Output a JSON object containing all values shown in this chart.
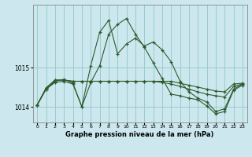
{
  "title": "Graphe pression niveau de la mer (hPa)",
  "background_color": "#cce8ee",
  "grid_color": "#99cccc",
  "line_color": "#2d5a2d",
  "marker_color": "#2d5a2d",
  "xlim": [
    -0.5,
    23.5
  ],
  "ylim": [
    1013.6,
    1016.6
  ],
  "yticks": [
    1014,
    1015
  ],
  "xticks": [
    0,
    1,
    2,
    3,
    4,
    5,
    6,
    7,
    8,
    9,
    10,
    11,
    12,
    13,
    14,
    15,
    16,
    17,
    18,
    19,
    20,
    21,
    22,
    23
  ],
  "series": [
    [
      1014.05,
      1014.45,
      1014.65,
      1014.7,
      1014.6,
      1014.0,
      1015.05,
      1015.9,
      1016.2,
      1015.35,
      1015.6,
      1015.75,
      1015.55,
      1015.65,
      1015.45,
      1015.15,
      1014.65,
      1014.38,
      1014.22,
      1014.12,
      1013.88,
      1013.95,
      1014.45,
      1014.58
    ],
    [
      1014.05,
      1014.48,
      1014.68,
      1014.68,
      1014.65,
      1014.65,
      1014.65,
      1014.65,
      1014.65,
      1014.65,
      1014.65,
      1014.65,
      1014.65,
      1014.65,
      1014.65,
      1014.65,
      1014.6,
      1014.55,
      1014.5,
      1014.45,
      1014.4,
      1014.38,
      1014.58,
      1014.6
    ],
    [
      1014.05,
      1014.48,
      1014.68,
      1014.68,
      1014.65,
      1014.65,
      1014.65,
      1014.65,
      1014.65,
      1014.65,
      1014.65,
      1014.65,
      1014.65,
      1014.65,
      1014.62,
      1014.58,
      1014.52,
      1014.45,
      1014.38,
      1014.32,
      1014.28,
      1014.25,
      1014.52,
      1014.58
    ],
    [
      1014.05,
      1014.45,
      1014.62,
      1014.65,
      1014.58,
      1014.0,
      1014.62,
      1015.05,
      1015.85,
      1016.1,
      1016.25,
      1015.85,
      1015.52,
      1015.12,
      1014.72,
      1014.32,
      1014.28,
      1014.22,
      1014.18,
      1014.02,
      1013.82,
      1013.88,
      1014.42,
      1014.55
    ]
  ]
}
